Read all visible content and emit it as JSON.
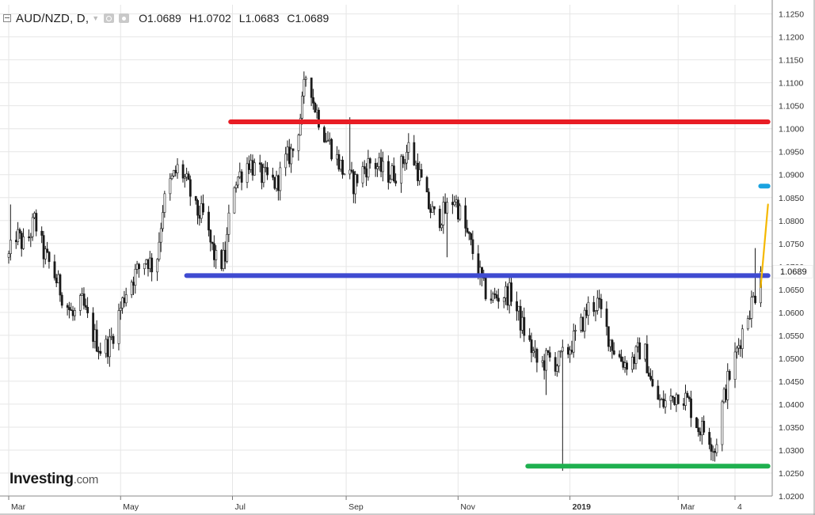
{
  "header": {
    "symbol": "AUD/NZD, D,",
    "open": "O1.0689",
    "high": "H1.0702",
    "low": "L1.0683",
    "close": "C1.0689"
  },
  "logo": {
    "main": "Investing",
    "suffix": ".com"
  },
  "chart_data": {
    "type": "candlestick",
    "symbol": "AUD/NZD",
    "interval": "D",
    "ylim": [
      1.02,
      1.127
    ],
    "y_ticks": [
      "1.1250",
      "1.1200",
      "1.1150",
      "1.1100",
      "1.1050",
      "1.1000",
      "1.0950",
      "1.0900",
      "1.0850",
      "1.0800",
      "1.0750",
      "1.0700",
      "1.0650",
      "1.0600",
      "1.0550",
      "1.0500",
      "1.0450",
      "1.0400",
      "1.0350",
      "1.0300",
      "1.0250",
      "1.0200"
    ],
    "y_tick_values": [
      1.125,
      1.12,
      1.115,
      1.11,
      1.105,
      1.1,
      1.095,
      1.09,
      1.085,
      1.08,
      1.075,
      1.07,
      1.065,
      1.06,
      1.055,
      1.05,
      1.045,
      1.04,
      1.035,
      1.03,
      1.025,
      1.02
    ],
    "last_price": "1.0689",
    "last_price_value": 1.0689,
    "x_ticks": [
      "Mar",
      "May",
      "Jul",
      "Sep",
      "Nov",
      "2019",
      "Mar",
      "4"
    ],
    "x_tick_dates": [
      "2018-03-01",
      "2018-05-01",
      "2018-07-01",
      "2018-09-01",
      "2018-11-01",
      "2019-01-01",
      "2019-03-01",
      "2019-04-01"
    ],
    "x_range": [
      "2018-03-01",
      "2019-04-20"
    ],
    "grid": true,
    "price_path": [
      [
        "2018-03-01",
        1.072
      ],
      [
        "2018-03-05",
        1.077
      ],
      [
        "2018-03-10",
        1.074
      ],
      [
        "2018-03-15",
        1.08
      ],
      [
        "2018-03-20",
        1.073
      ],
      [
        "2018-03-25",
        1.069
      ],
      [
        "2018-03-30",
        1.064
      ],
      [
        "2018-04-05",
        1.059
      ],
      [
        "2018-04-10",
        1.062
      ],
      [
        "2018-04-15",
        1.056
      ],
      [
        "2018-04-20",
        1.052
      ],
      [
        "2018-04-25",
        1.053
      ],
      [
        "2018-05-01",
        1.061
      ],
      [
        "2018-05-05",
        1.066
      ],
      [
        "2018-05-10",
        1.069
      ],
      [
        "2018-05-15",
        1.072
      ],
      [
        "2018-05-20",
        1.069
      ],
      [
        "2018-05-24",
        1.083
      ],
      [
        "2018-05-28",
        1.088
      ],
      [
        "2018-06-02",
        1.092
      ],
      [
        "2018-06-07",
        1.087
      ],
      [
        "2018-06-11",
        1.082
      ],
      [
        "2018-06-15",
        1.081
      ],
      [
        "2018-06-19",
        1.075
      ],
      [
        "2018-06-23",
        1.07
      ],
      [
        "2018-06-27",
        1.072
      ],
      [
        "2018-07-01",
        1.088
      ],
      [
        "2018-07-05",
        1.09
      ],
      [
        "2018-07-10",
        1.093
      ],
      [
        "2018-07-15",
        1.09
      ],
      [
        "2018-07-20",
        1.089
      ],
      [
        "2018-07-25",
        1.088
      ],
      [
        "2018-07-30",
        1.093
      ],
      [
        "2018-08-04",
        1.096
      ],
      [
        "2018-08-08",
        1.105
      ],
      [
        "2018-08-11",
        1.115
      ],
      [
        "2018-08-14",
        1.106
      ],
      [
        "2018-08-19",
        1.1
      ],
      [
        "2018-08-25",
        1.095
      ],
      [
        "2018-08-30",
        1.091
      ],
      [
        "2018-09-05",
        1.088
      ],
      [
        "2018-09-10",
        1.091
      ],
      [
        "2018-09-15",
        1.093
      ],
      [
        "2018-09-20",
        1.091
      ],
      [
        "2018-09-25",
        1.09
      ],
      [
        "2018-09-30",
        1.091
      ],
      [
        "2018-10-05",
        1.096
      ],
      [
        "2018-10-10",
        1.091
      ],
      [
        "2018-10-15",
        1.084
      ],
      [
        "2018-10-20",
        1.08
      ],
      [
        "2018-10-25",
        1.082
      ],
      [
        "2018-10-30",
        1.085
      ],
      [
        "2018-11-05",
        1.078
      ],
      [
        "2018-11-10",
        1.072
      ],
      [
        "2018-11-15",
        1.065
      ],
      [
        "2018-11-20",
        1.063
      ],
      [
        "2018-11-25",
        1.064
      ],
      [
        "2018-11-30",
        1.064
      ],
      [
        "2018-12-05",
        1.058
      ],
      [
        "2018-12-10",
        1.053
      ],
      [
        "2018-12-15",
        1.048
      ],
      [
        "2018-12-20",
        1.05
      ],
      [
        "2018-12-25",
        1.049
      ],
      [
        "2018-12-30",
        1.051
      ],
      [
        "2019-01-03",
        1.054
      ],
      [
        "2019-01-07",
        1.057
      ],
      [
        "2019-01-11",
        1.061
      ],
      [
        "2019-01-16",
        1.062
      ],
      [
        "2019-01-21",
        1.056
      ],
      [
        "2019-01-26",
        1.051
      ],
      [
        "2019-01-31",
        1.049
      ],
      [
        "2019-02-05",
        1.05
      ],
      [
        "2019-02-10",
        1.053
      ],
      [
        "2019-02-15",
        1.043
      ],
      [
        "2019-02-20",
        1.04
      ],
      [
        "2019-02-25",
        1.041
      ],
      [
        "2019-03-02",
        1.043
      ],
      [
        "2019-03-07",
        1.04
      ],
      [
        "2019-03-12",
        1.035
      ],
      [
        "2019-03-17",
        1.034
      ],
      [
        "2019-03-21",
        1.03
      ],
      [
        "2019-03-24",
        1.038
      ],
      [
        "2019-03-28",
        1.045
      ],
      [
        "2019-04-01",
        1.05
      ],
      [
        "2019-04-05",
        1.056
      ],
      [
        "2019-04-09",
        1.061
      ],
      [
        "2019-04-13",
        1.065
      ],
      [
        "2019-04-15",
        1.0689
      ]
    ],
    "outlier_lows": [
      [
        "2018-03-31",
        1.063
      ],
      [
        "2018-10-26",
        1.072
      ],
      [
        "2018-12-19",
        1.042
      ],
      [
        "2018-12-28",
        1.0255
      ],
      [
        "2019-03-21",
        1.0275
      ]
    ],
    "outlier_highs": [
      [
        "2018-03-02",
        1.0835
      ],
      [
        "2018-08-12",
        1.118
      ],
      [
        "2018-09-03",
        1.1025
      ],
      [
        "2019-04-12",
        1.074
      ]
    ],
    "drawings": [
      {
        "kind": "horizontal",
        "color": "#e81c24",
        "y": 1.1015,
        "from": "2018-06-30",
        "to": "2019-04-19"
      },
      {
        "kind": "horizontal",
        "color": "#3f4bd1",
        "y": 1.068,
        "from": "2018-06-06",
        "to": "2019-04-19"
      },
      {
        "kind": "horizontal",
        "color": "#1fb04f",
        "y": 1.0265,
        "from": "2018-12-09",
        "to": "2019-04-19"
      },
      {
        "kind": "horizontal",
        "color": "#1aa3e0",
        "y": 1.0875,
        "from": "2019-04-15",
        "to": "2019-04-19"
      },
      {
        "kind": "trend",
        "color": "#f5b800",
        "from": [
          "2019-04-15",
          1.0655
        ],
        "to": [
          "2019-04-19",
          1.0835
        ]
      }
    ],
    "colors": {
      "grid": "#e6e6e6",
      "candle": "#1a1a1a",
      "axis_text": "#333333",
      "price_label_bg": "#ffffff"
    }
  }
}
